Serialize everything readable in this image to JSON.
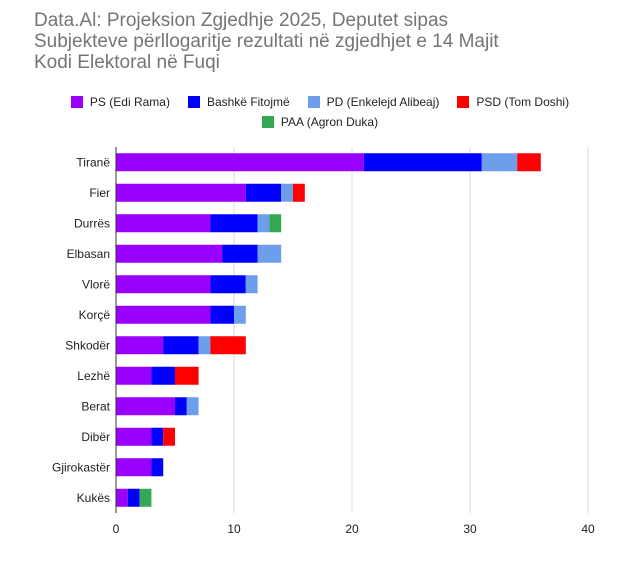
{
  "title_lines": [
    "Data.Al: Projeksion Zgjedhje 2025, Deputet sipas",
    "Subjekteve përllogaritje rezultati në zgjedhjet e 14 Majit",
    "Kodi Elektoral në Fuqi"
  ],
  "colors": {
    "grid": "#d9d9d9",
    "axis": "#333333",
    "label": "#222222"
  },
  "chart_data": {
    "type": "bar",
    "orientation": "horizontal",
    "stacked": true,
    "categories": [
      "Tiranë",
      "Fier",
      "Durrës",
      "Elbasan",
      "Vlorë",
      "Korçë",
      "Shkodër",
      "Lezhë",
      "Berat",
      "Dibër",
      "Gjirokastër",
      "Kukës"
    ],
    "series": [
      {
        "name": "PS (Edi Rama)",
        "color": "#9900ff",
        "values": [
          21,
          11,
          8,
          9,
          8,
          8,
          4,
          3,
          5,
          3,
          3,
          1
        ]
      },
      {
        "name": "Bashkë Fitojmë",
        "color": "#0000ff",
        "values": [
          10,
          3,
          4,
          3,
          3,
          2,
          3,
          2,
          1,
          1,
          1,
          1
        ]
      },
      {
        "name": "PD (Enkelejd Alibeaj)",
        "color": "#6d9eeb",
        "values": [
          3,
          1,
          1,
          2,
          1,
          1,
          1,
          0,
          1,
          0,
          0,
          0
        ]
      },
      {
        "name": "PSD (Tom Doshi)",
        "color": "#ff0000",
        "values": [
          2,
          1,
          0,
          0,
          0,
          0,
          3,
          2,
          0,
          1,
          0,
          0
        ]
      },
      {
        "name": "PAA (Agron Duka)",
        "color": "#34a853",
        "values": [
          0,
          0,
          1,
          0,
          0,
          0,
          0,
          0,
          0,
          0,
          0,
          1
        ]
      }
    ],
    "xlim": [
      0,
      40
    ],
    "xticks": [
      0,
      10,
      20,
      30,
      40
    ],
    "grid": true,
    "legend_position": "top"
  }
}
